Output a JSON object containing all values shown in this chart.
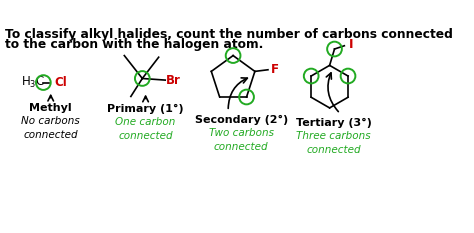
{
  "bg_color": "#ffffff",
  "title_line1": "To classify alkyl halides, count the number of carbons connected",
  "title_line2": "to the carbon with the halogen atom.",
  "title_fontsize": 8.8,
  "structures": [
    {
      "label": "Methyl",
      "sublabel": "No carbons\nconnected",
      "sublabel_color": "#000000",
      "halogen": "Cl",
      "halogen_color": "#cc0000"
    },
    {
      "label": "Primary (1°)",
      "sublabel": "One carbon\nconnected",
      "sublabel_color": "#22aa22",
      "halogen": "Br",
      "halogen_color": "#cc0000"
    },
    {
      "label": "Secondary (2°)",
      "sublabel": "Two carbons\nconnected",
      "sublabel_color": "#22aa22",
      "halogen": "F",
      "halogen_color": "#cc0000"
    },
    {
      "label": "Tertiary (3°)",
      "sublabel": "Three carbons\nconnected",
      "sublabel_color": "#22aa22",
      "halogen": "I",
      "halogen_color": "#cc0000"
    }
  ],
  "green_circle_color": "#22aa22",
  "label_fontsize": 8.0,
  "sublabel_fontsize": 7.5
}
